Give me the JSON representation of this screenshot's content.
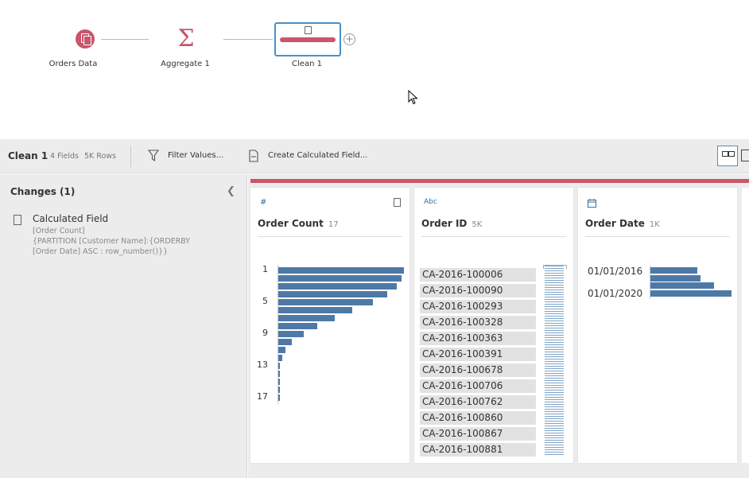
{
  "flow": {
    "nodes": [
      {
        "label": "Orders Data",
        "icon": "data-source-icon"
      },
      {
        "label": "Aggregate 1",
        "icon": "sigma-icon"
      },
      {
        "label": "Clean 1",
        "icon": "clean-step-icon"
      }
    ],
    "accent": "#c9566b",
    "selected_border": "#4a90c8"
  },
  "toolbar": {
    "title": "Clean 1",
    "fields": "4 Fields",
    "rows": "5K Rows",
    "filter_label": "Filter Values...",
    "calc_label": "Create Calculated Field..."
  },
  "changes": {
    "title": "Changes (1)",
    "items": [
      {
        "title": "Calculated Field",
        "formula_lines": [
          "[Order Count]",
          "{PARTITION [Customer Name]:{ORDERBY",
          "[Order Date] ASC : row_number()}}"
        ]
      }
    ]
  },
  "cards": {
    "order_count": {
      "type_icon": "#",
      "name": "Order Count",
      "count": "17",
      "ticks": [
        "1",
        "5",
        "9",
        "13",
        "17"
      ],
      "bars": [
        1.0,
        0.98,
        0.94,
        0.87,
        0.75,
        0.59,
        0.45,
        0.31,
        0.2,
        0.11,
        0.06,
        0.03,
        0.015,
        0.01,
        0.008,
        0.006,
        0.005
      ]
    },
    "order_id": {
      "type_icon": "Abc",
      "name": "Order ID",
      "count": "5K",
      "values": [
        "CA-2016-100006",
        "CA-2016-100090",
        "CA-2016-100293",
        "CA-2016-100328",
        "CA-2016-100363",
        "CA-2016-100391",
        "CA-2016-100678",
        "CA-2016-100706",
        "CA-2016-100762",
        "CA-2016-100860",
        "CA-2016-100867",
        "CA-2016-100881"
      ]
    },
    "order_date": {
      "type_icon": "calendar-icon",
      "name": "Order Date",
      "count": "1K",
      "ticks": [
        "01/01/2016",
        "01/01/2020"
      ],
      "bars": [
        0.58,
        0.62,
        0.78,
        1.0
      ]
    }
  },
  "bar_color": "#4e79a7"
}
